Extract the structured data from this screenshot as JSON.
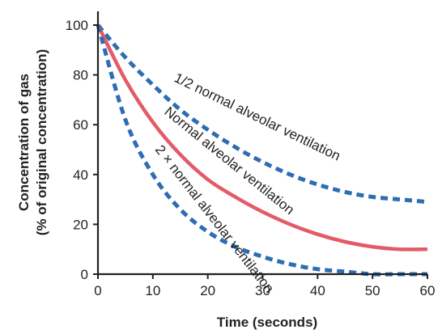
{
  "chart_data": {
    "type": "line",
    "xlabel": "Time (seconds)",
    "ylabel": [
      "Concentration of gas",
      "(% of original concentration)"
    ],
    "xlim": [
      0,
      60
    ],
    "ylim": [
      0,
      100
    ],
    "xticks": [
      0,
      10,
      20,
      30,
      40,
      50,
      60
    ],
    "yticks": [
      0,
      20,
      40,
      60,
      80,
      100
    ],
    "grid": false,
    "legend": "none",
    "x": [
      0,
      5,
      10,
      15,
      20,
      25,
      30,
      35,
      40,
      45,
      50,
      55,
      60
    ],
    "series": [
      {
        "name": "1/2 normal alveolar ventilation",
        "color": "#2f6db3",
        "style": "dashed",
        "values": [
          100,
          87,
          76,
          66,
          58,
          51,
          45,
          40,
          36,
          33,
          31,
          30,
          29
        ]
      },
      {
        "name": "Normal alveolar ventilation",
        "color": "#e35b66",
        "style": "solid",
        "values": [
          100,
          78,
          61,
          48,
          38,
          31,
          25,
          20,
          16,
          13,
          11,
          10,
          10
        ]
      },
      {
        "name": "2 × normal alveolar ventilation",
        "color": "#2f6db3",
        "style": "dashed",
        "values": [
          100,
          62,
          40,
          26,
          17,
          11,
          7,
          4,
          2,
          1,
          0,
          0,
          0
        ]
      }
    ]
  }
}
